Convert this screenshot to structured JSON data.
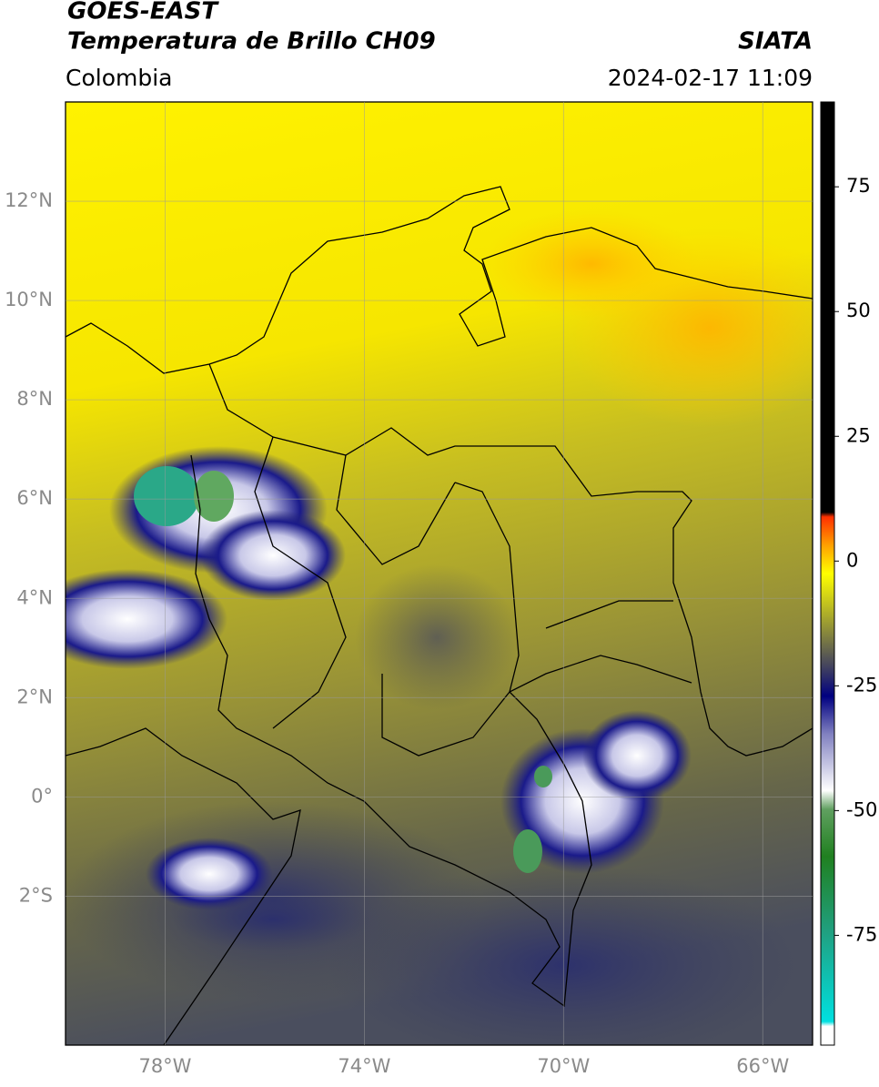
{
  "header": {
    "title": "GOES-EAST",
    "subtitle": "Temperatura de Brillo CH09",
    "source": "SIATA",
    "region": "Colombia",
    "datetime": "2024-02-17 11:09"
  },
  "chart_data": {
    "type": "map",
    "xlim": [
      -80,
      -65
    ],
    "ylim": [
      -5,
      14
    ],
    "xticks": [
      {
        "value": -78,
        "label": "78°W"
      },
      {
        "value": -74,
        "label": "74°W"
      },
      {
        "value": -70,
        "label": "70°W"
      },
      {
        "value": -66,
        "label": "66°W"
      }
    ],
    "yticks": [
      {
        "value": 12,
        "label": "12°N"
      },
      {
        "value": 10,
        "label": "10°N"
      },
      {
        "value": 8,
        "label": "8°N"
      },
      {
        "value": 6,
        "label": "6°N"
      },
      {
        "value": 4,
        "label": "4°N"
      },
      {
        "value": 2,
        "label": "2°N"
      },
      {
        "value": 0,
        "label": "0°"
      },
      {
        "value": -2,
        "label": "2°S"
      }
    ],
    "grid": true,
    "colorbar": {
      "lim": [
        -97,
        92
      ],
      "ticks": [
        75,
        50,
        25,
        0,
        -25,
        -50,
        -75
      ]
    }
  }
}
